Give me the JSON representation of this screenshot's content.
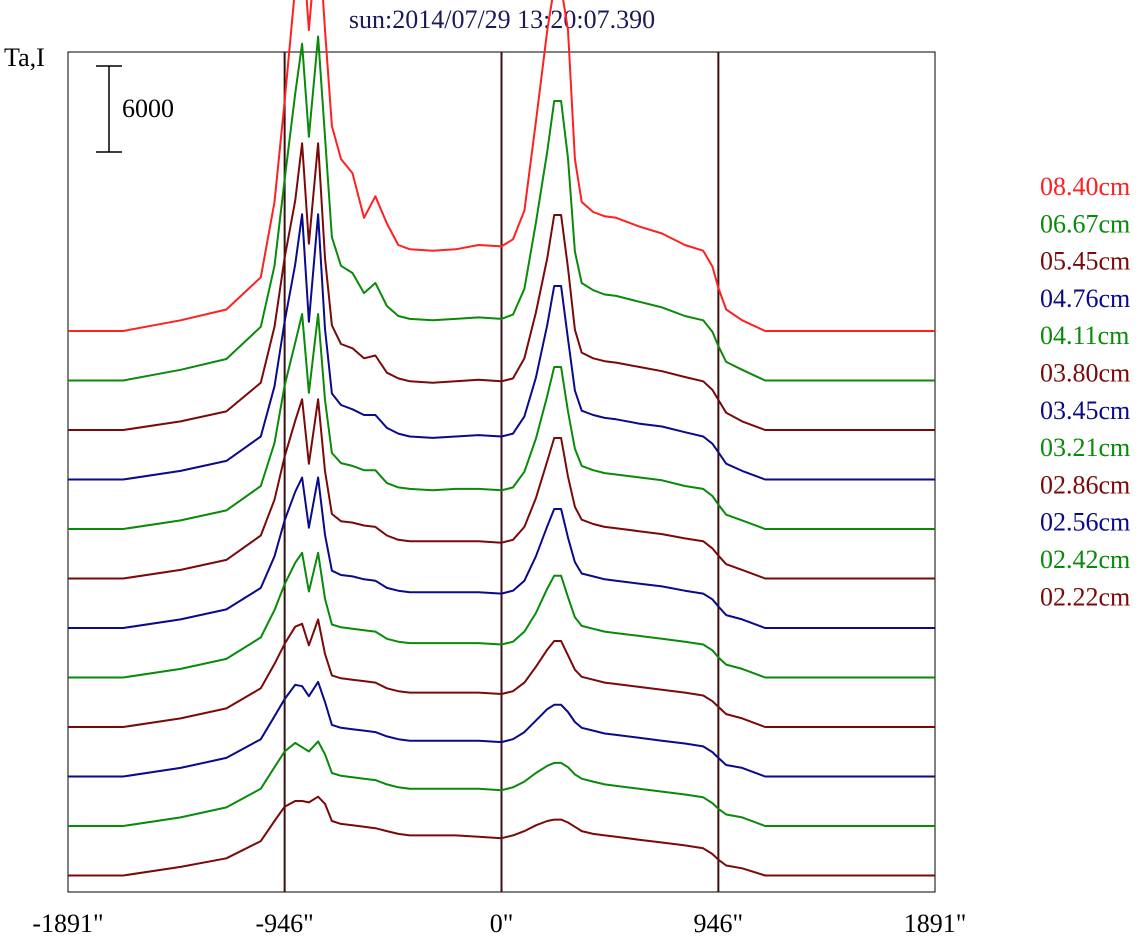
{
  "chart_data": {
    "type": "line",
    "title": "sun:2014/07/29 13:20:07.390",
    "ylabel": "Ta,I",
    "scale_bar_label": "6000",
    "scale_bar_value": 6000,
    "xlim": [
      -1891,
      1891
    ],
    "x_ticks": [
      {
        "value": -1891,
        "label": "-1891\""
      },
      {
        "value": -946,
        "label": "-946\""
      },
      {
        "value": 0,
        "label": "0\""
      },
      {
        "value": 946,
        "label": "946\""
      },
      {
        "value": 1891,
        "label": "1891\""
      }
    ],
    "vertical_lines": [
      -946,
      0,
      946
    ],
    "colors": {
      "red": "#ff2020",
      "green": "#0a8a0a",
      "maroon": "#7a0a0a",
      "navy": "#0a0a8a",
      "guide": "#3a1010"
    },
    "x": [
      -1891,
      -1650,
      -1400,
      -1200,
      -1050,
      -990,
      -946,
      -900,
      -870,
      -840,
      -800,
      -770,
      -740,
      -700,
      -650,
      -600,
      -550,
      -500,
      -450,
      -400,
      -300,
      -200,
      -100,
      0,
      50,
      100,
      150,
      200,
      230,
      260,
      290,
      320,
      350,
      400,
      450,
      500,
      600,
      700,
      800,
      880,
      920,
      946,
      980,
      1050,
      1150,
      1300,
      1500,
      1891
    ],
    "series": [
      {
        "name": "08.40cm",
        "color": "#ff2020",
        "values": [
          0,
          0,
          750,
          1500,
          3750,
          9000,
          16000,
          24000,
          27500,
          21000,
          28500,
          21000,
          14300,
          12000,
          11000,
          7900,
          9400,
          7500,
          6000,
          5700,
          5600,
          5700,
          6000,
          5900,
          6400,
          8400,
          14600,
          21000,
          24000,
          24000,
          21000,
          12000,
          9000,
          8300,
          8000,
          7900,
          7300,
          6800,
          6000,
          5600,
          4500,
          3000,
          1500,
          750,
          0,
          0,
          0,
          0
        ]
      },
      {
        "name": "06.67cm",
        "color": "#0a8a0a",
        "values": [
          0,
          0,
          750,
          1500,
          3750,
          8000,
          14000,
          20000,
          23500,
          17000,
          24000,
          17000,
          10000,
          8000,
          7500,
          6100,
          6800,
          5200,
          4500,
          4300,
          4200,
          4300,
          4400,
          4300,
          4600,
          6400,
          11000,
          16000,
          19500,
          19500,
          15500,
          9000,
          6800,
          6300,
          6000,
          5900,
          5500,
          5100,
          4500,
          4200,
          3400,
          2400,
          1300,
          750,
          0,
          0,
          0,
          0
        ]
      },
      {
        "name": "05.45cm",
        "color": "#7a0a0a",
        "values": [
          0,
          0,
          600,
          1300,
          3300,
          7200,
          12000,
          16000,
          20000,
          13000,
          20000,
          12000,
          7300,
          6000,
          5700,
          5000,
          5200,
          4000,
          3600,
          3400,
          3300,
          3400,
          3500,
          3400,
          3600,
          5000,
          8200,
          12000,
          15000,
          15000,
          11300,
          7000,
          5400,
          5000,
          4800,
          4700,
          4400,
          4100,
          3700,
          3400,
          2800,
          2100,
          1200,
          600,
          0,
          0,
          0,
          0
        ]
      },
      {
        "name": "04.76cm",
        "color": "#0a0a8a",
        "values": [
          0,
          0,
          600,
          1300,
          3000,
          6500,
          11000,
          15000,
          18500,
          11000,
          18500,
          10500,
          6000,
          5200,
          4900,
          4500,
          4500,
          3600,
          3200,
          3000,
          2900,
          3000,
          3100,
          3000,
          3200,
          4400,
          7100,
          10800,
          13500,
          13500,
          9800,
          6200,
          4800,
          4500,
          4300,
          4200,
          3900,
          3700,
          3300,
          3000,
          2500,
          1900,
          1100,
          600,
          0,
          0,
          0,
          0
        ]
      },
      {
        "name": "04.11cm",
        "color": "#0a8a0a",
        "values": [
          0,
          0,
          600,
          1300,
          3000,
          6000,
          10000,
          13000,
          15000,
          9500,
          15000,
          9000,
          5300,
          4600,
          4400,
          4100,
          4100,
          3200,
          2900,
          2800,
          2700,
          2800,
          2800,
          2700,
          2900,
          4000,
          6300,
          9300,
          11300,
          11300,
          8200,
          5600,
          4400,
          4100,
          3900,
          3800,
          3600,
          3400,
          3000,
          2800,
          2300,
          1700,
          1000,
          600,
          0,
          0,
          0,
          0
        ]
      },
      {
        "name": "03.80cm",
        "color": "#7a0a0a",
        "values": [
          0,
          0,
          600,
          1300,
          3000,
          5500,
          8500,
          11000,
          12500,
          8000,
          12500,
          7500,
          4500,
          4000,
          3900,
          3700,
          3600,
          3000,
          2700,
          2600,
          2600,
          2600,
          2600,
          2500,
          2700,
          3600,
          5600,
          8200,
          9800,
          9800,
          7100,
          5000,
          4100,
          3800,
          3600,
          3500,
          3300,
          3100,
          2800,
          2600,
          2100,
          1600,
          1000,
          600,
          0,
          0,
          0,
          0
        ]
      },
      {
        "name": "03.45cm",
        "color": "#0a0a8a",
        "values": [
          0,
          0,
          600,
          1300,
          2800,
          5000,
          7500,
          9500,
          10500,
          7000,
          10500,
          6500,
          4000,
          3700,
          3600,
          3400,
          3300,
          2800,
          2600,
          2500,
          2500,
          2500,
          2500,
          2400,
          2600,
          3300,
          5000,
          7100,
          8300,
          8300,
          6300,
          4600,
          3800,
          3600,
          3400,
          3300,
          3100,
          2900,
          2600,
          2400,
          2000,
          1500,
          900,
          600,
          0,
          0,
          0,
          0
        ]
      },
      {
        "name": "03.21cm",
        "color": "#0a8a0a",
        "values": [
          0,
          0,
          600,
          1300,
          2800,
          4700,
          6500,
          8000,
          8700,
          6000,
          8700,
          5500,
          3700,
          3500,
          3400,
          3300,
          3200,
          2700,
          2500,
          2400,
          2400,
          2400,
          2400,
          2300,
          2500,
          3200,
          4500,
          6200,
          7100,
          7100,
          5600,
          4200,
          3600,
          3400,
          3200,
          3100,
          2900,
          2700,
          2500,
          2300,
          1900,
          1400,
          900,
          600,
          0,
          0,
          0,
          0
        ]
      },
      {
        "name": "02.86cm",
        "color": "#7a0a0a",
        "values": [
          0,
          0,
          600,
          1300,
          2700,
          4400,
          5800,
          7000,
          7200,
          5700,
          7500,
          5100,
          3600,
          3400,
          3300,
          3200,
          3100,
          2700,
          2500,
          2400,
          2400,
          2400,
          2400,
          2300,
          2500,
          3100,
          4200,
          5400,
          6000,
          6000,
          5000,
          4000,
          3500,
          3300,
          3100,
          3000,
          2800,
          2600,
          2400,
          2200,
          1800,
          1400,
          900,
          600,
          0,
          0,
          0,
          0
        ]
      },
      {
        "name": "02.56cm",
        "color": "#0a0a8a",
        "values": [
          0,
          0,
          600,
          1300,
          2600,
          4200,
          5400,
          6400,
          6300,
          5600,
          6600,
          5200,
          3600,
          3400,
          3300,
          3200,
          3100,
          2800,
          2600,
          2500,
          2500,
          2500,
          2500,
          2400,
          2600,
          3100,
          3900,
          4700,
          5000,
          5000,
          4500,
          3800,
          3400,
          3200,
          3000,
          2900,
          2700,
          2500,
          2300,
          2100,
          1700,
          1300,
          800,
          600,
          0,
          0,
          0,
          0
        ]
      },
      {
        "name": "02.42cm",
        "color": "#0a8a0a",
        "values": [
          0,
          0,
          600,
          1300,
          2600,
          4100,
          5200,
          5800,
          5500,
          5200,
          5900,
          5000,
          3700,
          3500,
          3400,
          3300,
          3200,
          2900,
          2700,
          2600,
          2600,
          2600,
          2600,
          2500,
          2700,
          3100,
          3700,
          4200,
          4400,
          4400,
          4100,
          3600,
          3300,
          3100,
          2900,
          2800,
          2600,
          2400,
          2200,
          2000,
          1600,
          1200,
          800,
          600,
          0,
          0,
          0,
          0
        ]
      },
      {
        "name": "02.22cm",
        "color": "#7a0a0a",
        "values": [
          0,
          0,
          600,
          1200,
          2400,
          3800,
          4800,
          5200,
          5200,
          5100,
          5500,
          5000,
          3800,
          3600,
          3500,
          3400,
          3300,
          3100,
          2900,
          2800,
          2800,
          2800,
          2700,
          2600,
          2800,
          3100,
          3500,
          3800,
          3900,
          3900,
          3700,
          3400,
          3100,
          2900,
          2800,
          2700,
          2500,
          2300,
          2100,
          1900,
          1500,
          1100,
          700,
          500,
          0,
          0,
          0,
          0
        ]
      }
    ]
  }
}
